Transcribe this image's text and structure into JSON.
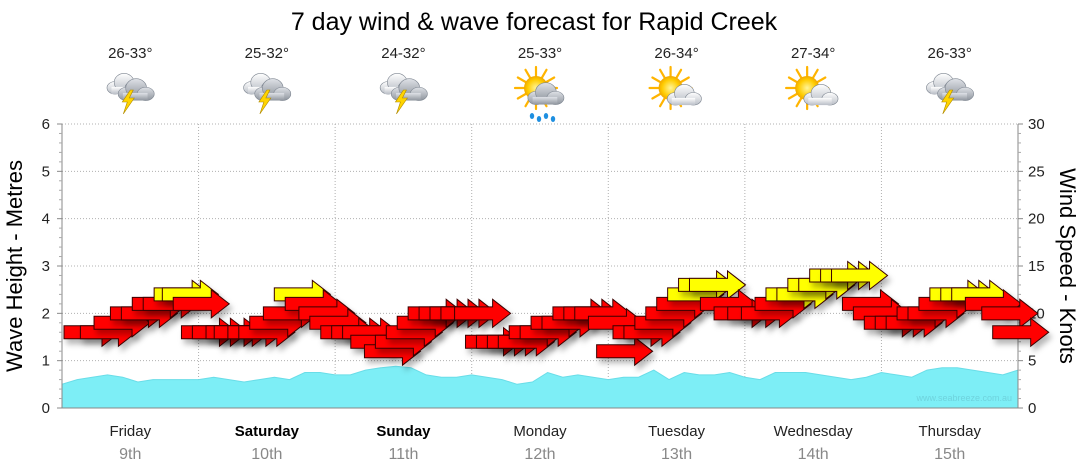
{
  "chart_data": {
    "type": "line",
    "title": "7 day wind & wave forecast for Rapid Creek",
    "ylabel_left": "Wave Height - Metres",
    "ylabel_right": "Wind Speed - Knots",
    "ylim_left": [
      0,
      6
    ],
    "ylim_right": [
      0,
      30
    ],
    "yticks_left": [
      "0",
      "1",
      "2",
      "3",
      "4",
      "5",
      "6"
    ],
    "yticks_right": [
      "0",
      "5",
      "10",
      "15",
      "20",
      "25",
      "30"
    ],
    "grid": true,
    "watermark": "www.seabreeze.com.au",
    "days": [
      {
        "name": "Friday",
        "date": "9th",
        "temp": "26-33°",
        "icon": "storm-icon",
        "bold": false
      },
      {
        "name": "Saturday",
        "date": "10th",
        "temp": "25-32°",
        "icon": "storm-icon",
        "bold": true
      },
      {
        "name": "Sunday",
        "date": "11th",
        "temp": "24-32°",
        "icon": "storm-icon",
        "bold": true
      },
      {
        "name": "Monday",
        "date": "12th",
        "temp": "25-33°",
        "icon": "sun-rain-icon",
        "bold": false
      },
      {
        "name": "Tuesday",
        "date": "13th",
        "temp": "26-34°",
        "icon": "sun-cloud-icon",
        "bold": false
      },
      {
        "name": "Wednesday",
        "date": "14th",
        "temp": "27-34°",
        "icon": "sun-cloud-icon",
        "bold": false
      },
      {
        "name": "Thursday",
        "date": "15th",
        "temp": "26-33°",
        "icon": "storm-icon",
        "bold": false
      }
    ],
    "wave_series": {
      "name": "Wave height",
      "unit": "m",
      "values": [
        0.5,
        0.6,
        0.65,
        0.7,
        0.65,
        0.55,
        0.6,
        0.6,
        0.6,
        0.6,
        0.65,
        0.6,
        0.55,
        0.6,
        0.65,
        0.6,
        0.75,
        0.75,
        0.7,
        0.7,
        0.8,
        0.85,
        0.88,
        0.85,
        0.7,
        0.65,
        0.65,
        0.7,
        0.65,
        0.6,
        0.5,
        0.55,
        0.75,
        0.65,
        0.7,
        0.65,
        0.6,
        0.65,
        0.65,
        0.8,
        0.6,
        0.75,
        0.7,
        0.7,
        0.75,
        0.65,
        0.6,
        0.75,
        0.75,
        0.75,
        0.7,
        0.65,
        0.6,
        0.65,
        0.75,
        0.7,
        0.65,
        0.8,
        0.85,
        0.85,
        0.8,
        0.75,
        0.7,
        0.8
      ]
    },
    "wind_series": {
      "name": "Wind speed",
      "unit": "knots",
      "colors": {
        "strong": "#ff0000",
        "moderate": "#ffff00"
      },
      "direction": "from west (arrows point east)",
      "arrows": [
        {
          "x": 0.0,
          "kt": 8
        },
        {
          "x": 0.12,
          "kt": 8
        },
        {
          "x": 0.22,
          "kt": 9
        },
        {
          "x": 0.34,
          "kt": 10
        },
        {
          "x": 0.42,
          "kt": 10
        },
        {
          "x": 0.5,
          "kt": 11
        },
        {
          "x": 0.58,
          "kt": 11
        },
        {
          "x": 0.66,
          "kt": 12
        },
        {
          "x": 0.72,
          "kt": 12
        },
        {
          "x": 0.8,
          "kt": 11
        },
        {
          "x": 0.86,
          "kt": 8
        },
        {
          "x": 0.94,
          "kt": 8
        },
        {
          "x": 1.04,
          "kt": 8
        },
        {
          "x": 1.1,
          "kt": 8
        },
        {
          "x": 1.2,
          "kt": 8
        },
        {
          "x": 1.28,
          "kt": 8
        },
        {
          "x": 1.36,
          "kt": 9
        },
        {
          "x": 1.46,
          "kt": 10
        },
        {
          "x": 1.54,
          "kt": 12
        },
        {
          "x": 1.62,
          "kt": 11
        },
        {
          "x": 1.72,
          "kt": 10
        },
        {
          "x": 1.8,
          "kt": 9
        },
        {
          "x": 1.88,
          "kt": 8
        },
        {
          "x": 1.96,
          "kt": 8
        },
        {
          "x": 2.04,
          "kt": 8
        },
        {
          "x": 2.1,
          "kt": 7
        },
        {
          "x": 2.2,
          "kt": 6
        },
        {
          "x": 2.28,
          "kt": 7
        },
        {
          "x": 2.36,
          "kt": 8
        },
        {
          "x": 2.44,
          "kt": 9
        },
        {
          "x": 2.52,
          "kt": 10
        },
        {
          "x": 2.6,
          "kt": 10
        },
        {
          "x": 2.68,
          "kt": 10
        },
        {
          "x": 2.76,
          "kt": 10
        },
        {
          "x": 2.86,
          "kt": 10
        },
        {
          "x": 2.94,
          "kt": 7
        },
        {
          "x": 3.02,
          "kt": 7
        },
        {
          "x": 3.1,
          "kt": 7
        },
        {
          "x": 3.18,
          "kt": 7
        },
        {
          "x": 3.26,
          "kt": 8
        },
        {
          "x": 3.34,
          "kt": 8
        },
        {
          "x": 3.42,
          "kt": 9
        },
        {
          "x": 3.5,
          "kt": 9
        },
        {
          "x": 3.58,
          "kt": 10
        },
        {
          "x": 3.66,
          "kt": 10
        },
        {
          "x": 3.74,
          "kt": 10
        },
        {
          "x": 3.84,
          "kt": 9
        },
        {
          "x": 3.9,
          "kt": 6
        },
        {
          "x": 4.02,
          "kt": 8
        },
        {
          "x": 4.1,
          "kt": 8
        },
        {
          "x": 4.18,
          "kt": 9
        },
        {
          "x": 4.26,
          "kt": 10
        },
        {
          "x": 4.34,
          "kt": 11
        },
        {
          "x": 4.42,
          "kt": 12
        },
        {
          "x": 4.5,
          "kt": 13
        },
        {
          "x": 4.58,
          "kt": 13
        },
        {
          "x": 4.66,
          "kt": 11
        },
        {
          "x": 4.76,
          "kt": 10
        },
        {
          "x": 4.86,
          "kt": 10
        },
        {
          "x": 4.96,
          "kt": 10
        },
        {
          "x": 5.06,
          "kt": 11
        },
        {
          "x": 5.14,
          "kt": 12
        },
        {
          "x": 5.22,
          "kt": 12
        },
        {
          "x": 5.3,
          "kt": 13
        },
        {
          "x": 5.38,
          "kt": 13
        },
        {
          "x": 5.46,
          "kt": 14
        },
        {
          "x": 5.54,
          "kt": 14
        },
        {
          "x": 5.62,
          "kt": 14
        },
        {
          "x": 5.7,
          "kt": 11
        },
        {
          "x": 5.78,
          "kt": 10
        },
        {
          "x": 5.86,
          "kt": 9
        },
        {
          "x": 5.94,
          "kt": 9
        },
        {
          "x": 6.02,
          "kt": 9
        },
        {
          "x": 6.1,
          "kt": 10
        },
        {
          "x": 6.18,
          "kt": 10
        },
        {
          "x": 6.26,
          "kt": 11
        },
        {
          "x": 6.34,
          "kt": 12
        },
        {
          "x": 6.42,
          "kt": 12
        },
        {
          "x": 6.5,
          "kt": 12
        },
        {
          "x": 6.6,
          "kt": 11
        },
        {
          "x": 6.72,
          "kt": 10
        },
        {
          "x": 6.8,
          "kt": 8
        }
      ]
    }
  }
}
